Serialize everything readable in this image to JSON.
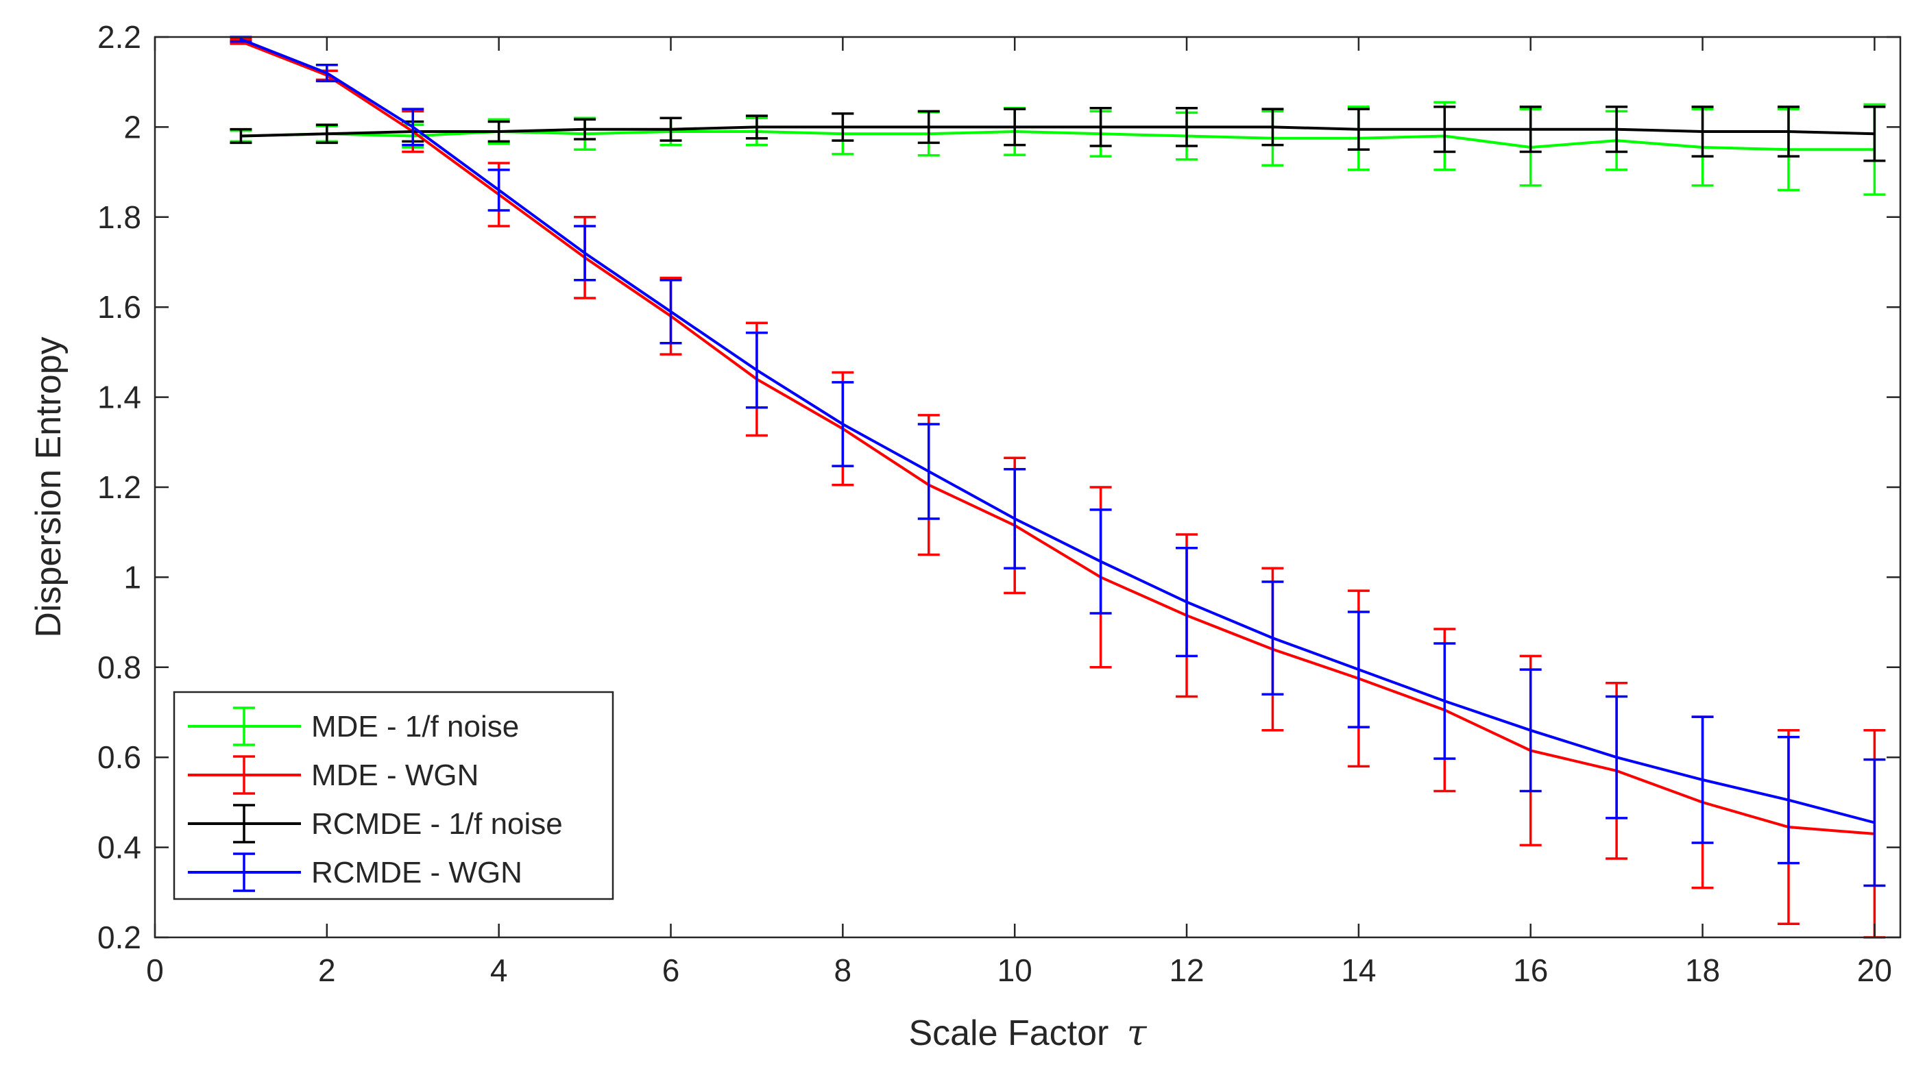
{
  "chart_data": {
    "type": "line",
    "title": "",
    "xlabel": "Scale Factor",
    "xlabel_symbol": "τ",
    "ylabel": "Dispersion Entropy",
    "xlim": [
      0,
      20.3
    ],
    "ylim": [
      0.2,
      2.2
    ],
    "xticks": [
      0,
      2,
      4,
      6,
      8,
      10,
      12,
      14,
      16,
      18,
      20
    ],
    "yticks": [
      0.2,
      0.4,
      0.6,
      0.8,
      1,
      1.2,
      1.4,
      1.6,
      1.8,
      2,
      2.2
    ],
    "xtick_labels": [
      "0",
      "2",
      "4",
      "6",
      "8",
      "10",
      "12",
      "14",
      "16",
      "18",
      "20"
    ],
    "ytick_labels": [
      "0.2",
      "0.4",
      "0.6",
      "0.8",
      "1",
      "1.2",
      "1.4",
      "1.6",
      "1.8",
      "2",
      "2.2"
    ],
    "grid": false,
    "legend_position": "bottom-left",
    "x": [
      1,
      2,
      3,
      4,
      5,
      6,
      7,
      8,
      9,
      10,
      11,
      12,
      13,
      14,
      15,
      16,
      17,
      18,
      19,
      20
    ],
    "series": [
      {
        "name": "MDE - 1/f noise",
        "color": "#00ff00",
        "values": [
          1.98,
          1.985,
          1.98,
          1.99,
          1.985,
          1.99,
          1.99,
          1.985,
          1.985,
          1.99,
          1.985,
          1.98,
          1.975,
          1.975,
          1.98,
          1.955,
          1.97,
          1.955,
          1.95,
          1.95
        ],
        "errors": [
          0.012,
          0.017,
          0.025,
          0.027,
          0.035,
          0.03,
          0.03,
          0.045,
          0.048,
          0.052,
          0.05,
          0.052,
          0.06,
          0.07,
          0.075,
          0.085,
          0.065,
          0.085,
          0.09,
          0.1
        ]
      },
      {
        "name": "MDE - WGN",
        "color": "#ff0000",
        "values": [
          2.19,
          2.115,
          1.99,
          1.85,
          1.71,
          1.58,
          1.44,
          1.33,
          1.205,
          1.115,
          1.0,
          0.915,
          0.84,
          0.775,
          0.705,
          0.615,
          0.57,
          0.5,
          0.445,
          0.43
        ],
        "errors": [
          0.005,
          0.01,
          0.045,
          0.07,
          0.09,
          0.085,
          0.125,
          0.125,
          0.155,
          0.15,
          0.2,
          0.18,
          0.18,
          0.195,
          0.18,
          0.21,
          0.195,
          0.19,
          0.215,
          0.23
        ]
      },
      {
        "name": "RCMDE - 1/f noise",
        "color": "#000000",
        "values": [
          1.98,
          1.985,
          1.99,
          1.99,
          1.995,
          1.995,
          2.0,
          2.0,
          2.0,
          2.0,
          2.0,
          2.0,
          2.0,
          1.995,
          1.995,
          1.995,
          1.995,
          1.99,
          1.99,
          1.985
        ],
        "errors": [
          0.015,
          0.02,
          0.022,
          0.022,
          0.022,
          0.025,
          0.025,
          0.03,
          0.035,
          0.04,
          0.042,
          0.042,
          0.04,
          0.045,
          0.05,
          0.05,
          0.05,
          0.055,
          0.055,
          0.06
        ]
      },
      {
        "name": "RCMDE - WGN",
        "color": "#0000ff",
        "values": [
          2.195,
          2.12,
          2.0,
          1.86,
          1.72,
          1.59,
          1.46,
          1.34,
          1.235,
          1.13,
          1.035,
          0.945,
          0.865,
          0.795,
          0.725,
          0.66,
          0.6,
          0.55,
          0.505,
          0.455
        ],
        "errors": [
          0.005,
          0.018,
          0.04,
          0.045,
          0.06,
          0.07,
          0.083,
          0.093,
          0.105,
          0.11,
          0.115,
          0.12,
          0.125,
          0.128,
          0.128,
          0.135,
          0.135,
          0.14,
          0.14,
          0.14
        ]
      }
    ]
  }
}
